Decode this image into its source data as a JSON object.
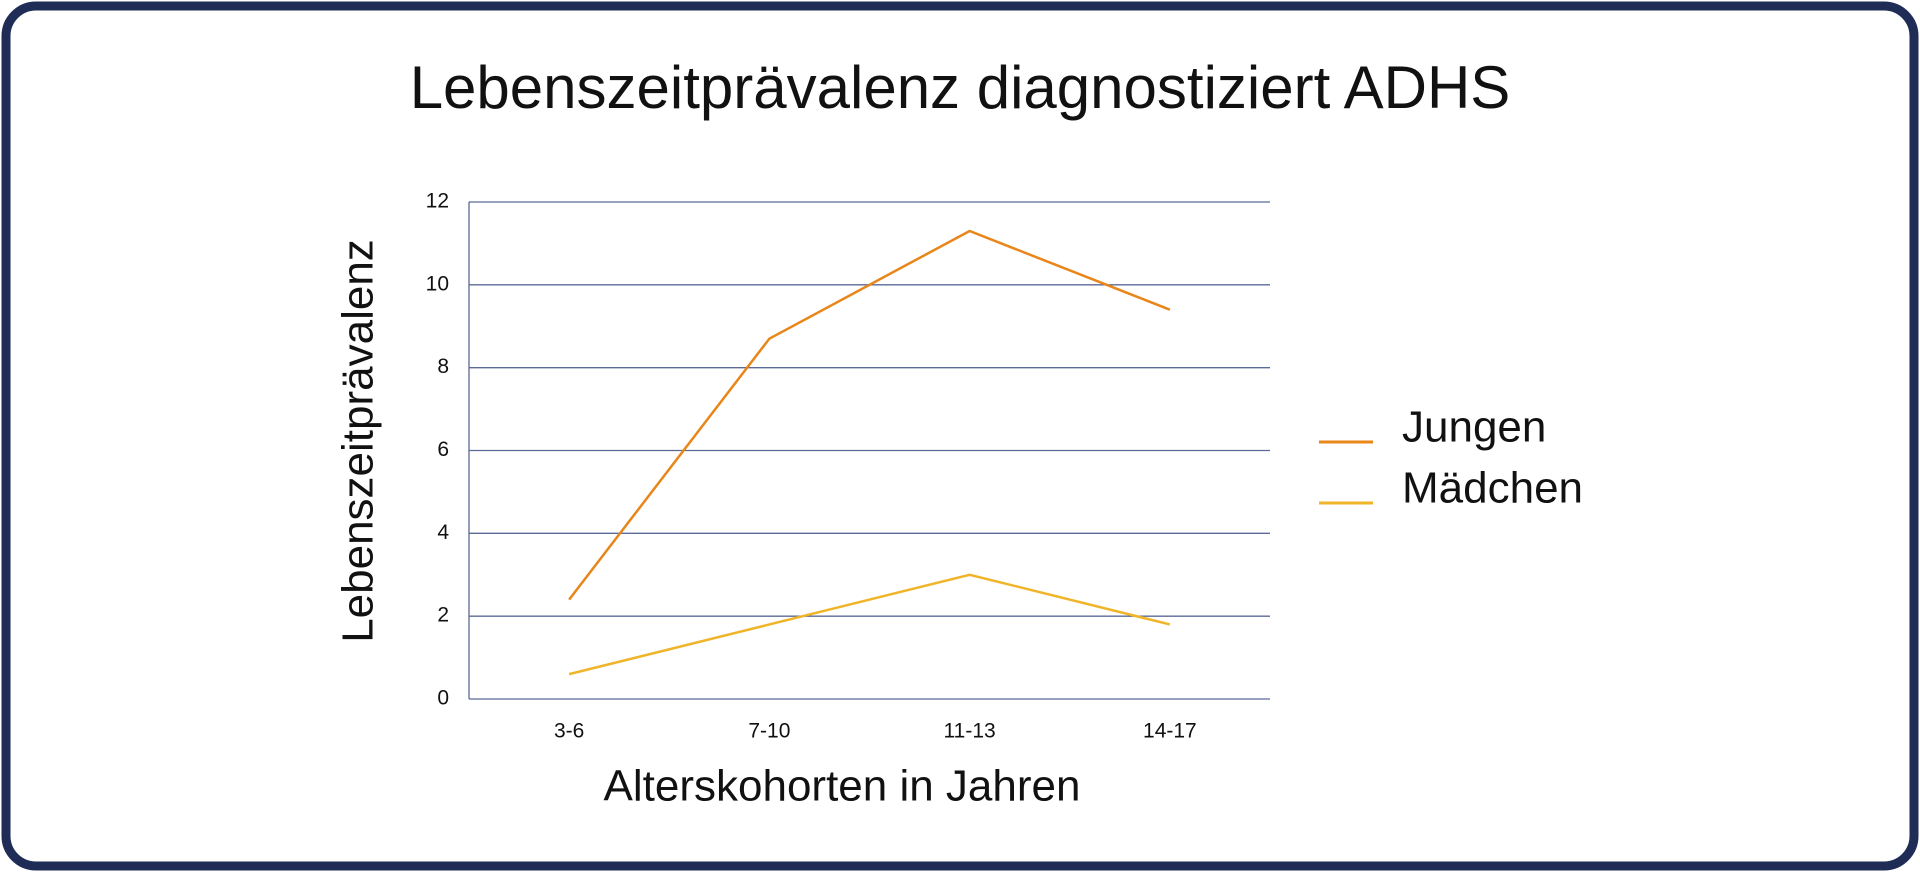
{
  "chart_data": {
    "type": "line",
    "title": "Lebenszeitprävalenz diagnostiziert ADHS",
    "x_label": "Alterskohorten in Jahren",
    "y_label": "Lebenszeitprävalenz",
    "categories": [
      "3-6",
      "7-10",
      "11-13",
      "14-17"
    ],
    "series": [
      {
        "name": "Jungen",
        "color": "#e8861a",
        "values": [
          2.4,
          8.7,
          11.3,
          9.4
        ]
      },
      {
        "name": "Mädchen",
        "color": "#f0b429",
        "values": [
          0.6,
          1.8,
          3.0,
          1.8
        ]
      }
    ],
    "ylim": [
      0,
      12
    ],
    "yticks": [
      0,
      2,
      4,
      6,
      8,
      10,
      12
    ],
    "grid": true,
    "legend": "right"
  }
}
